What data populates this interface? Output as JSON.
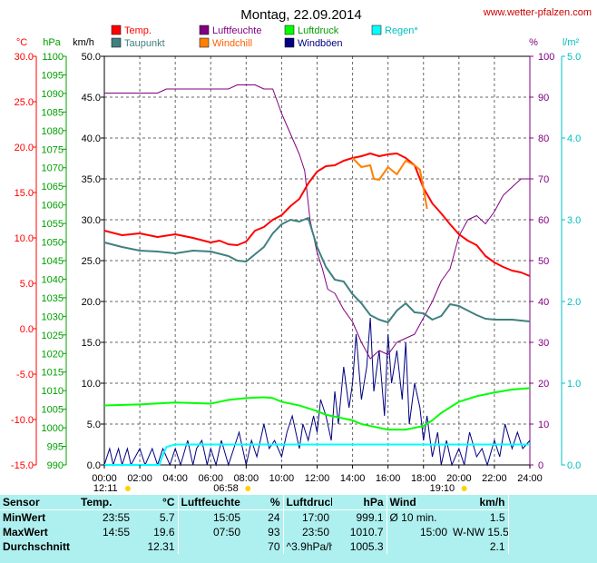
{
  "site_url": "www.wetter-pfalzen.com",
  "chart_data": {
    "type": "line",
    "title": "Montag, 22.09.2014",
    "x_ticks": [
      "00:00",
      "02:00",
      "04:00",
      "06:00",
      "08:00",
      "10:00",
      "12:00",
      "14:00",
      "16:00",
      "18:00",
      "20:00",
      "22:00",
      "24:00"
    ],
    "xlim": [
      0,
      24
    ],
    "axes": {
      "temp": {
        "unit": "°C",
        "ylim": [
          -15,
          30
        ],
        "ticks": [
          "30.0",
          "25.0",
          "20.0",
          "15.0",
          "10.0",
          "5.0",
          "0.0",
          "-5.0",
          "-10.0",
          "-15.0"
        ],
        "color": "#ff0000"
      },
      "pressure": {
        "unit": "hPa",
        "ylim": [
          990,
          1100
        ],
        "ticks": [
          "1100",
          "1095",
          "1090",
          "1085",
          "1080",
          "1075",
          "1070",
          "1065",
          "1060",
          "1055",
          "1050",
          "1045",
          "1040",
          "1035",
          "1030",
          "1025",
          "1020",
          "1015",
          "1010",
          "1005",
          "1000",
          "995",
          "990"
        ],
        "color": "#00a000"
      },
      "wind": {
        "unit": "km/h",
        "ylim": [
          0,
          50
        ],
        "ticks": [
          "50.0",
          "45.0",
          "40.0",
          "35.0",
          "30.0",
          "25.0",
          "20.0",
          "15.0",
          "10.0",
          "5.0",
          "0.0"
        ],
        "color": "#000000"
      },
      "humidity": {
        "unit": "%",
        "ylim": [
          0,
          100
        ],
        "ticks": [
          "100",
          "90",
          "80",
          "70",
          "60",
          "50",
          "40",
          "30",
          "20",
          "10",
          "0"
        ],
        "color": "#800080"
      },
      "rain": {
        "unit": "l/m²",
        "ylim": [
          0,
          5
        ],
        "ticks": [
          "5.0",
          "4.0",
          "3.0",
          "2.0",
          "1.0",
          "0.0"
        ],
        "color": "#00c0c0"
      }
    },
    "legend": [
      {
        "label": "Temp.",
        "color": "#ff0000"
      },
      {
        "label": "Luftfeuchte",
        "color": "#800080"
      },
      {
        "label": "Luftdruck",
        "color": "#00ff00"
      },
      {
        "label": "Regen*",
        "color": "#00ffff"
      },
      {
        "label": "Taupunkt",
        "color": "#408080"
      },
      {
        "label": "Windchill",
        "color": "#ff8000"
      },
      {
        "label": "Windböen",
        "color": "#000080"
      }
    ],
    "series": [
      {
        "name": "Temp.",
        "axis": "temp",
        "color": "#ff0000",
        "x": [
          0,
          1,
          2,
          3,
          4,
          5,
          6,
          6.5,
          7,
          7.5,
          8,
          8.5,
          9,
          9.5,
          10,
          10.5,
          11,
          11.5,
          12,
          12.5,
          13,
          13.5,
          14,
          14.5,
          15,
          15.5,
          16,
          16.5,
          17,
          17.5,
          18,
          18.5,
          19,
          19.5,
          20,
          20.5,
          21,
          21.5,
          22,
          22.5,
          23,
          23.5,
          24
        ],
        "y": [
          10.8,
          10.3,
          10.5,
          10.1,
          10.4,
          10.0,
          9.5,
          9.7,
          9.3,
          9.2,
          9.6,
          10.8,
          11.2,
          12.0,
          12.5,
          13.5,
          14.3,
          16.0,
          17.3,
          17.9,
          18.0,
          18.5,
          18.8,
          19.0,
          19.3,
          19.0,
          19.2,
          19.3,
          18.8,
          18.0,
          15.5,
          13.8,
          12.7,
          11.5,
          10.4,
          9.7,
          9.2,
          8.0,
          7.3,
          6.8,
          6.4,
          6.2,
          5.8
        ]
      },
      {
        "name": "Taupunkt",
        "axis": "temp",
        "color": "#408080",
        "x": [
          0,
          1,
          2,
          3,
          4,
          5,
          6,
          7,
          7.5,
          8,
          8.5,
          9,
          9.5,
          10,
          10.5,
          11,
          11.5,
          12,
          12.5,
          13,
          13.5,
          14,
          14.5,
          15,
          15.5,
          16,
          16.5,
          17,
          17.5,
          18,
          18.5,
          19,
          19.5,
          20,
          20.5,
          21,
          21.5,
          22,
          22.5,
          23,
          23.5,
          24
        ],
        "y": [
          9.5,
          9.0,
          8.6,
          8.5,
          8.3,
          8.6,
          8.5,
          8.0,
          7.5,
          7.4,
          8.2,
          9.0,
          10.5,
          11.5,
          12.0,
          11.8,
          12.2,
          9.0,
          6.8,
          5.4,
          5.2,
          3.8,
          2.8,
          1.5,
          1.0,
          0.7,
          2.0,
          2.8,
          1.8,
          1.7,
          1.0,
          1.4,
          2.7,
          2.5,
          2.0,
          1.5,
          1.1,
          1.0,
          1.0,
          1.0,
          0.9,
          0.8
        ]
      },
      {
        "name": "Windchill",
        "axis": "temp",
        "color": "#ff8000",
        "x": [
          14,
          14.5,
          15,
          15.2,
          15.5,
          16,
          16.5,
          17,
          17.5,
          17.8,
          18,
          18.2
        ],
        "y": [
          18.8,
          17.8,
          18.0,
          16.5,
          16.4,
          17.8,
          17.0,
          18.5,
          18.0,
          17.5,
          15.5,
          13.2
        ]
      },
      {
        "name": "Luftfeuchte",
        "axis": "humidity",
        "color": "#800080",
        "x": [
          0,
          1,
          2,
          3,
          3.5,
          4,
          5,
          6,
          7,
          7.5,
          8,
          8.5,
          9,
          9.5,
          10,
          10.3,
          10.6,
          11,
          11.3,
          11.6,
          12,
          12.3,
          12.6,
          13,
          13.5,
          14,
          14.5,
          15,
          15.5,
          16,
          16.5,
          17,
          17.5,
          18,
          18.5,
          19,
          19.5,
          20,
          20.5,
          21,
          21.5,
          22,
          22.5,
          23,
          23.5,
          24
        ],
        "y": [
          91,
          91,
          91,
          91,
          92,
          92,
          92,
          92,
          92,
          93,
          93,
          93,
          92,
          92,
          86,
          83,
          80,
          76,
          72,
          60,
          52,
          48,
          43,
          42,
          38,
          35,
          30,
          26,
          28,
          27,
          30,
          31,
          32,
          36,
          40,
          45,
          48,
          56,
          60,
          61,
          59,
          62,
          66,
          68,
          70,
          70
        ]
      },
      {
        "name": "Luftdruck",
        "axis": "pressure",
        "color": "#00ff00",
        "x": [
          0,
          2,
          4,
          6,
          6.5,
          7,
          8,
          9,
          9.5,
          10,
          11,
          12,
          12.5,
          13,
          14,
          14.5,
          15,
          16,
          17,
          18,
          18.5,
          19,
          20,
          21,
          22,
          23,
          24
        ],
        "y": [
          1006.0,
          1006.3,
          1006.8,
          1006.5,
          1007.0,
          1007.5,
          1008.0,
          1008.2,
          1008.0,
          1007.0,
          1006.0,
          1004.5,
          1003.5,
          1003.0,
          1002.0,
          1001.0,
          1000.5,
          999.5,
          999.5,
          1000.5,
          1002.0,
          1004.0,
          1007.0,
          1008.5,
          1009.5,
          1010.3,
          1010.7
        ]
      },
      {
        "name": "Regen*",
        "axis": "rain",
        "color": "#00ffff",
        "x": [
          0,
          3.1,
          3.3,
          3.5,
          4,
          24
        ],
        "y": [
          0,
          0,
          0.12,
          0.22,
          0.25,
          0.25
        ]
      }
    ],
    "gust_series": {
      "name": "Windböen",
      "axis": "wind",
      "color": "#000080",
      "x": [
        0,
        0.3,
        0.5,
        0.8,
        1,
        1.3,
        1.5,
        2,
        2.3,
        2.7,
        3,
        3.3,
        3.7,
        4,
        4.3,
        4.7,
        5,
        5.2,
        5.5,
        5.8,
        6,
        6.3,
        6.6,
        7,
        7.3,
        7.6,
        8,
        8.3,
        8.6,
        9,
        9.3,
        9.6,
        10,
        10.3,
        10.6,
        11,
        11.2,
        11.5,
        11.8,
        12,
        12.2,
        12.5,
        12.8,
        13,
        13.2,
        13.5,
        13.8,
        14,
        14.2,
        14.5,
        14.8,
        15,
        15.2,
        15.5,
        15.8,
        16,
        16.2,
        16.5,
        16.8,
        17,
        17.2,
        17.5,
        17.8,
        18,
        18.2,
        18.5,
        18.8,
        19,
        19.3,
        19.6,
        20,
        20.3,
        20.6,
        21,
        21.3,
        21.6,
        22,
        22.3,
        22.6,
        23,
        23.3,
        23.6,
        24
      ],
      "y": [
        0,
        2,
        0,
        2,
        0,
        2,
        0,
        2,
        0,
        2,
        0,
        2,
        0,
        2,
        0,
        3,
        0,
        2,
        3,
        0,
        2,
        0,
        3,
        0,
        2,
        4,
        0,
        3,
        1,
        5,
        2,
        3,
        1,
        4,
        6,
        2,
        5,
        3,
        6,
        4,
        8,
        6,
        3,
        9,
        5,
        12,
        7,
        10,
        16,
        8,
        12,
        18,
        9,
        14,
        6,
        16,
        10,
        14,
        8,
        15,
        5,
        10,
        7,
        3,
        6,
        1,
        4,
        0,
        3,
        0,
        2,
        0,
        4,
        1,
        2,
        0,
        3,
        1,
        5,
        2,
        4,
        2,
        3
      ]
    },
    "time_markers": [
      {
        "label": "12:11",
        "x": 0.2
      },
      {
        "label": "06:58",
        "x": 6.97
      },
      {
        "label": "19:10",
        "x": 19.17
      }
    ]
  },
  "stats": {
    "headers": [
      "Sensor",
      "Temp.",
      "°C",
      "Luftfeuchte",
      "%",
      "Luftdruck",
      "hPa",
      "Wind",
      "km/h"
    ],
    "rows": [
      [
        "MinWert",
        "23:55",
        "5.7",
        "15:05",
        "24",
        "17:00",
        "999.1",
        "Ø 10 min.",
        "1.5"
      ],
      [
        "MaxWert",
        "14:55",
        "19.6",
        "07:50",
        "93",
        "23:50",
        "1010.7",
        "15:00",
        "W-NW 15.5"
      ],
      [
        "Durchschnitt",
        "",
        "12.31",
        "",
        "70",
        "^3.9hPa/h",
        "1005.3",
        "",
        "2.1"
      ]
    ]
  }
}
